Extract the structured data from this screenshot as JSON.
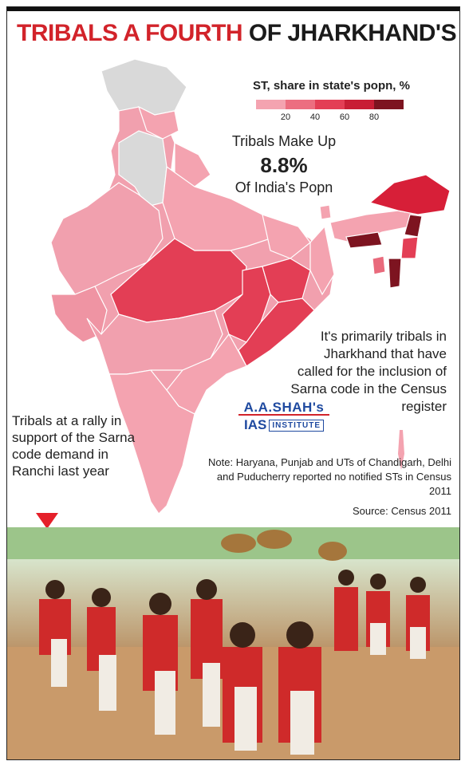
{
  "title": {
    "part1": "TRIBALS A FOURTH",
    "part2": " OF JHARKHAND'S POPN"
  },
  "legend": {
    "title": "ST, share in state's popn, %",
    "ticks": [
      "20",
      "40",
      "60",
      "80"
    ],
    "colors": [
      "#f4a3b0",
      "#ec6e80",
      "#e33e55",
      "#c81e35",
      "#7d1420"
    ],
    "no_data_color": "#d9d9d9"
  },
  "headline_stat": {
    "line1": "Tribals Make Up",
    "value": "8.8%",
    "line3": "Of India's Popn"
  },
  "annotation": "It's primarily tribals in Jharkhand that have called for the inclusion of Sarna code in the Census register",
  "logo": {
    "name": "A.A.SHAH's",
    "sub1": "IAS",
    "sub2": "INSTITUTE"
  },
  "photo_caption": "Tribals at a rally in support of the Sarna code demand in Ranchi last year",
  "note": "Note: Haryana, Punjab and UTs of Chandigarh, Delhi and Puducherry reported no notified STs in Census 2011",
  "source": "Source: Census 2011"
}
